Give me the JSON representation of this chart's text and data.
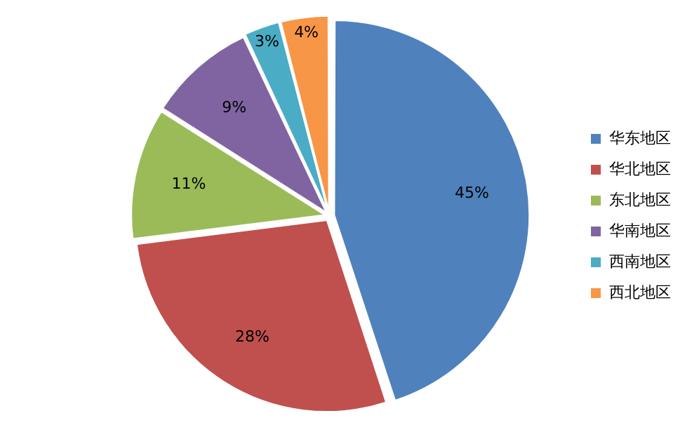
{
  "chart_data": {
    "type": "pie",
    "categories": [
      "华东地区",
      "华北地区",
      "东北地区",
      "华南地区",
      "西南地区",
      "西北地区"
    ],
    "values": [
      45,
      28,
      11,
      9,
      3,
      4
    ],
    "value_labels": [
      "45%",
      "28%",
      "11%",
      "9%",
      "3%",
      "4%"
    ],
    "colors": [
      "#4f81bd",
      "#c0504d",
      "#9bbb59",
      "#8064a2",
      "#4bacc6",
      "#f79646"
    ],
    "legend": "right"
  }
}
